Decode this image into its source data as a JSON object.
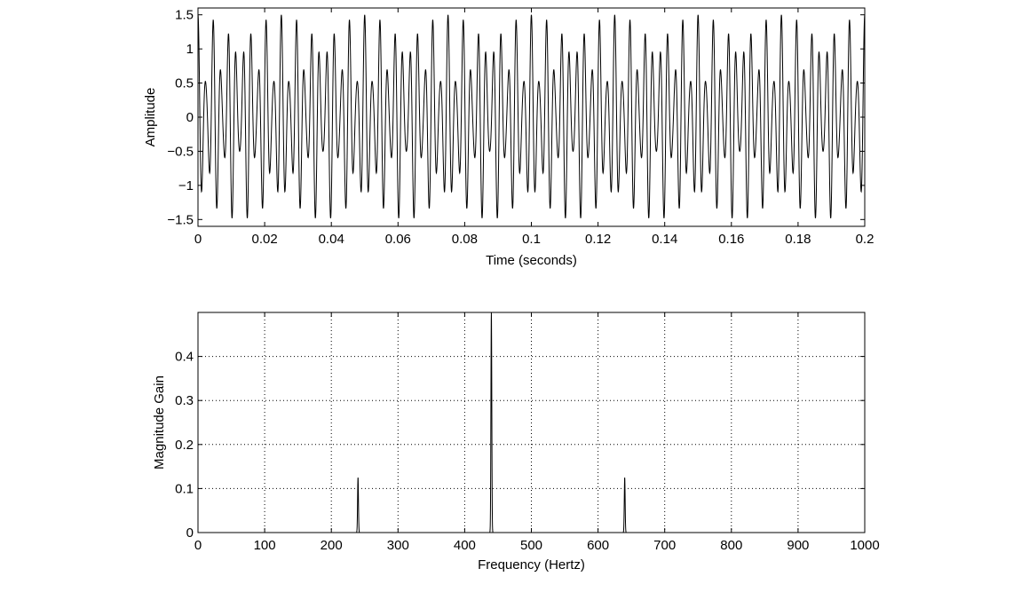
{
  "chart_data": [
    {
      "id": "time-plot",
      "type": "line",
      "title": "",
      "xlabel": "Time (seconds)",
      "ylabel": "Amplitude",
      "xlim": [
        0,
        0.2
      ],
      "ylim": [
        -1.6,
        1.6
      ],
      "xticks": [
        0,
        0.02,
        0.04,
        0.06,
        0.08,
        0.1,
        0.12,
        0.14,
        0.16,
        0.18,
        0.2
      ],
      "xtick_labels": [
        "0",
        "0.02",
        "0.04",
        "0.06",
        "0.08",
        "0.1",
        "0.12",
        "0.14",
        "0.16",
        "0.18",
        "0.2"
      ],
      "yticks": [
        -1.5,
        -1,
        -0.5,
        0,
        0.5,
        1,
        1.5
      ],
      "ytick_labels": [
        "−1.5",
        "−1",
        "−0.5",
        "0",
        "0.5",
        "1",
        "1.5"
      ],
      "grid": false,
      "signal": {
        "components": [
          {
            "frequency": 440,
            "amplitude": 1.0,
            "phase": 1.5708
          },
          {
            "frequency": 240,
            "amplitude": 0.25,
            "phase": 1.5708
          },
          {
            "frequency": 640,
            "amplitude": 0.25,
            "phase": 1.5708
          }
        ]
      },
      "color": "#000000"
    },
    {
      "id": "freq-plot",
      "type": "line",
      "title": "",
      "xlabel": "Frequency (Hertz)",
      "ylabel": "Magnitude Gain",
      "xlim": [
        0,
        1000
      ],
      "ylim": [
        0,
        0.5
      ],
      "xticks": [
        0,
        100,
        200,
        300,
        400,
        500,
        600,
        700,
        800,
        900,
        1000
      ],
      "xtick_labels": [
        "0",
        "100",
        "200",
        "300",
        "400",
        "500",
        "600",
        "700",
        "800",
        "900",
        "1000"
      ],
      "yticks": [
        0,
        0.1,
        0.2,
        0.3,
        0.4
      ],
      "ytick_labels": [
        "0",
        "0.1",
        "0.2",
        "0.3",
        "0.4"
      ],
      "grid": true,
      "peaks": [
        {
          "frequency": 240,
          "magnitude": 0.125
        },
        {
          "frequency": 440,
          "magnitude": 0.5
        },
        {
          "frequency": 640,
          "magnitude": 0.125
        }
      ],
      "color": "#000000"
    }
  ]
}
